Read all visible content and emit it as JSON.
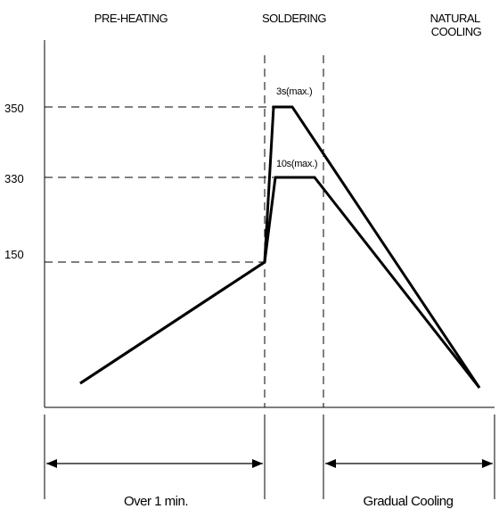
{
  "chart_data": {
    "type": "line",
    "title": "",
    "xlabel": "",
    "ylabel": "",
    "phases": [
      "PRE-HEATING",
      "SOLDERING",
      "NATURAL\nCOOLING"
    ],
    "yticks": [
      "350",
      "330",
      "150"
    ],
    "annotations": [
      "3s(max.)",
      "10s(max.)"
    ],
    "durations": [
      "Over 1 min.",
      "Gradual Cooling"
    ],
    "series": [
      {
        "values": [
          {
            "stage": "pre-heating start",
            "temp": null
          },
          {
            "stage": "pre-heating end",
            "temp": 150
          },
          {
            "stage": "soldering peak start",
            "temp": 350
          },
          {
            "stage": "soldering peak end",
            "temp": 350
          },
          {
            "stage": "natural cooling end",
            "temp": null
          }
        ],
        "hold": "3s(max.)"
      },
      {
        "values": [
          {
            "stage": "pre-heating start",
            "temp": null
          },
          {
            "stage": "pre-heating end",
            "temp": 150
          },
          {
            "stage": "soldering peak start",
            "temp": 330
          },
          {
            "stage": "soldering peak end",
            "temp": 330
          },
          {
            "stage": "natural cooling end",
            "temp": null
          }
        ],
        "hold": "10s(max.)"
      }
    ],
    "grid": false,
    "legend": "none"
  }
}
